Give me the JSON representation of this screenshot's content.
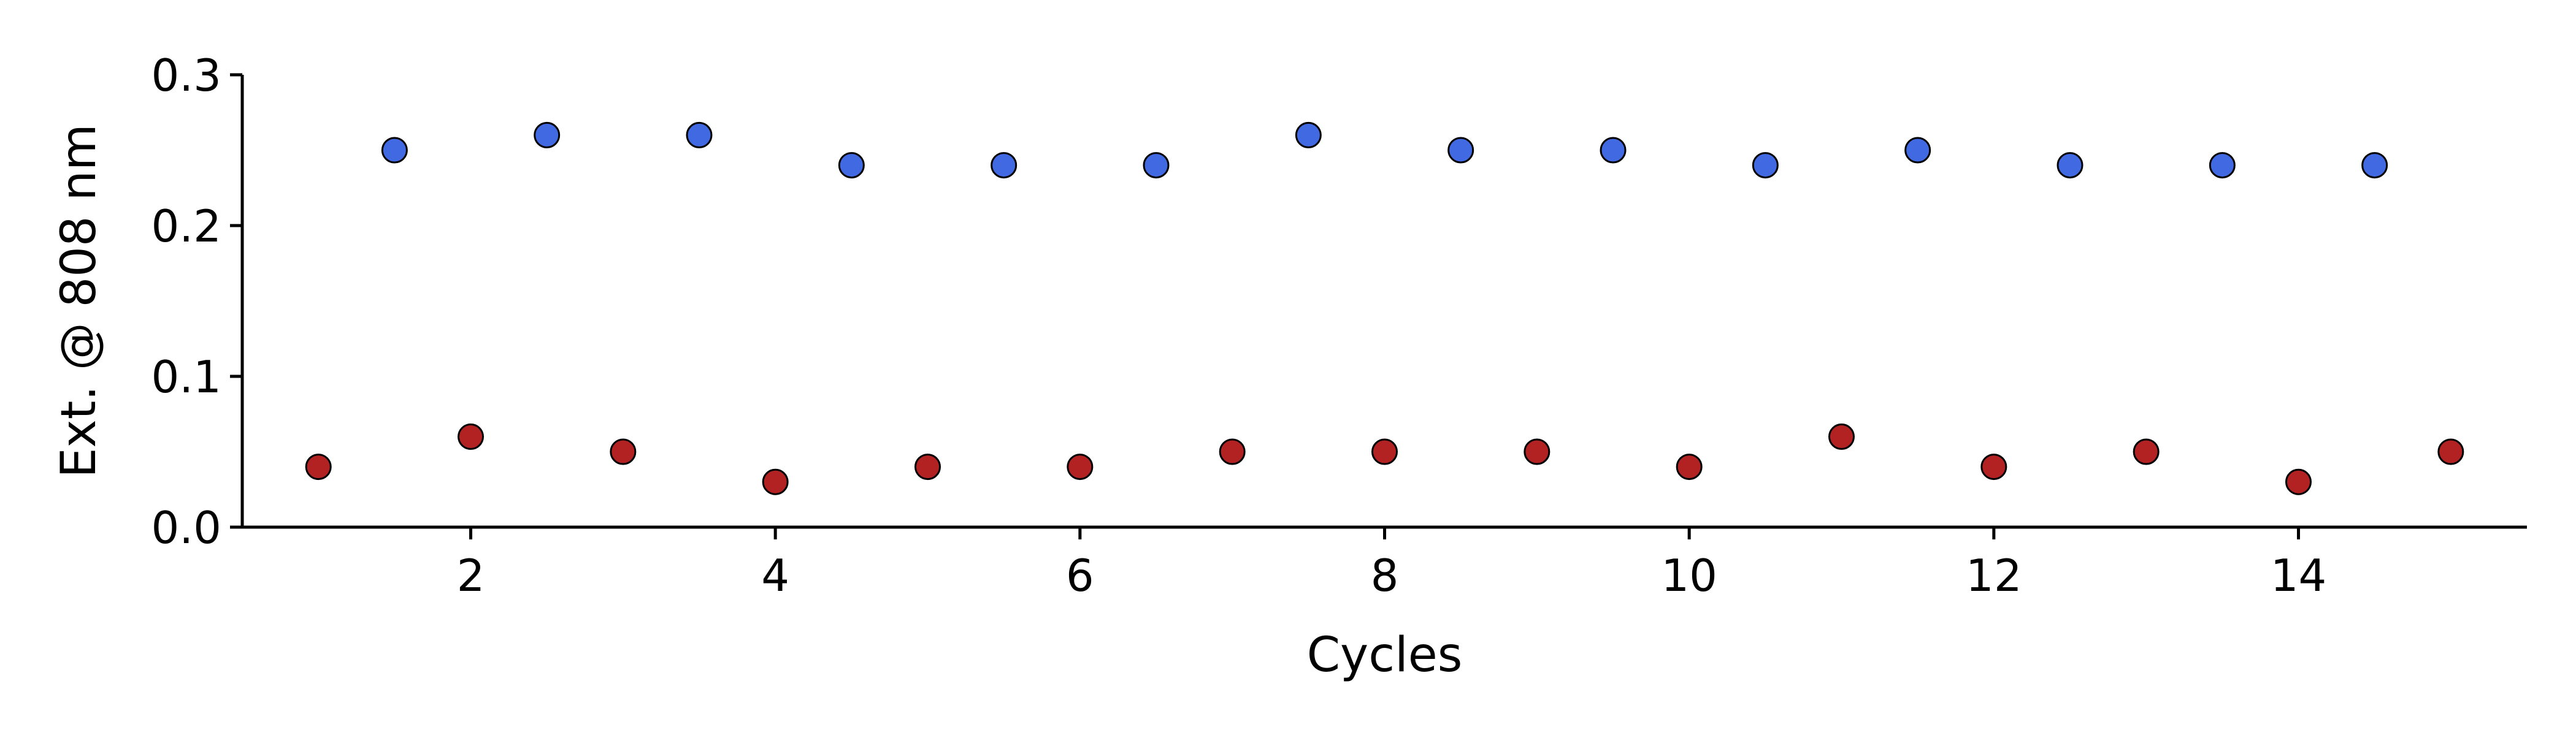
{
  "chart_data": {
    "type": "scatter",
    "title": "",
    "xlabel": "Cycles",
    "ylabel": "Ext. @ 808 nm",
    "xlim": [
      0.5,
      15.5
    ],
    "ylim": [
      0.0,
      0.3
    ],
    "xticks": [
      2,
      4,
      6,
      8,
      10,
      12,
      14
    ],
    "yticks": [
      0.0,
      0.1,
      0.2,
      0.3
    ],
    "xtick_labels": [
      "2",
      "4",
      "6",
      "8",
      "10",
      "12",
      "14"
    ],
    "ytick_labels": [
      "0.0",
      "0.1",
      "0.2",
      "0.3"
    ],
    "grid": false,
    "legend": "none",
    "series": [
      {
        "color": "#4169e1",
        "x": [
          1.5,
          2.5,
          3.5,
          4.5,
          5.5,
          6.5,
          7.5,
          8.5,
          9.5,
          10.5,
          11.5,
          12.5,
          13.5,
          14.5
        ],
        "y": [
          0.25,
          0.26,
          0.26,
          0.24,
          0.24,
          0.24,
          0.26,
          0.25,
          0.25,
          0.24,
          0.25,
          0.24,
          0.24,
          0.24
        ]
      },
      {
        "color": "#b22222",
        "x": [
          1,
          2,
          3,
          4,
          5,
          6,
          7,
          8,
          9,
          10,
          11,
          12,
          13,
          14,
          15
        ],
        "y": [
          0.04,
          0.06,
          0.05,
          0.03,
          0.04,
          0.04,
          0.05,
          0.05,
          0.05,
          0.04,
          0.06,
          0.04,
          0.05,
          0.03,
          0.05
        ]
      }
    ]
  }
}
